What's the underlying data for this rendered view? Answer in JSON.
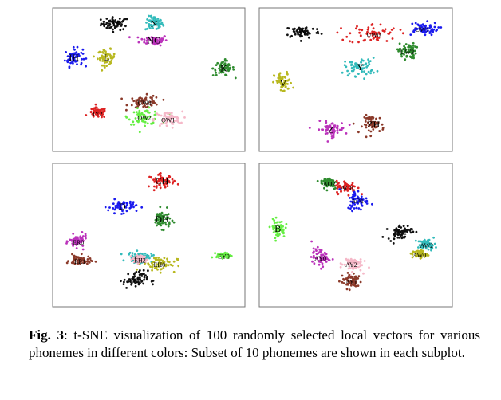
{
  "caption": {
    "label": "Fig. 3",
    "text": ": t-SNE visualization of 100 randomly selected local vectors for various phonemes in different colors: Subset of 10 phonemes are shown in each subplot."
  },
  "chart_data": [
    {
      "type": "scatter",
      "title": "",
      "xlabel": "",
      "ylabel": "",
      "grid": false,
      "legend": "none",
      "axes": false,
      "clusters": [
        {
          "label": "M",
          "color": "#111111",
          "cx": -0.38,
          "cy": 0.88,
          "sx": 0.08,
          "sy": 0.05
        },
        {
          "label": "N",
          "color": "#33bbbb",
          "cx": 0.06,
          "cy": 0.88,
          "sx": 0.05,
          "sy": 0.06
        },
        {
          "label": "NG",
          "color": "#bb33bb",
          "cx": 0.06,
          "cy": 0.62,
          "sx": 0.08,
          "sy": 0.04
        },
        {
          "label": "IH",
          "color": "#1a1aee",
          "cx": -0.85,
          "cy": 0.35,
          "sx": 0.05,
          "sy": 0.07
        },
        {
          "label": "L",
          "color": "#b8b820",
          "cx": -0.48,
          "cy": 0.35,
          "sx": 0.05,
          "sy": 0.06
        },
        {
          "label": "K",
          "color": "#2e8b2e",
          "cx": 0.85,
          "cy": 0.18,
          "sx": 0.06,
          "sy": 0.06
        },
        {
          "label": "IY2",
          "color": "#dd2222",
          "cx": -0.58,
          "cy": -0.52,
          "sx": 0.05,
          "sy": 0.04
        },
        {
          "label": "UW0",
          "color": "#8b3a2a",
          "cx": -0.05,
          "cy": -0.35,
          "sx": 0.09,
          "sy": 0.05
        },
        {
          "label": "OW2",
          "color": "#66ee44",
          "cx": -0.05,
          "cy": -0.58,
          "sx": 0.09,
          "sy": 0.06
        },
        {
          "label": "OW1",
          "color": "#f5b8c8",
          "cx": 0.22,
          "cy": -0.62,
          "sx": 0.08,
          "sy": 0.06
        }
      ]
    },
    {
      "type": "scatter",
      "title": "",
      "xlabel": "",
      "ylabel": "",
      "grid": false,
      "legend": "none",
      "axes": false,
      "clusters": [
        {
          "label": "W",
          "color": "#111111",
          "cx": -0.6,
          "cy": 0.75,
          "sx": 0.1,
          "sy": 0.05
        },
        {
          "label": "UW0",
          "color": "#dd2222",
          "cx": 0.2,
          "cy": 0.72,
          "sx": 0.14,
          "sy": 0.08
        },
        {
          "label": "UW1",
          "color": "#1a1aee",
          "cx": 0.75,
          "cy": 0.8,
          "sx": 0.09,
          "sy": 0.05
        },
        {
          "label": "UW2",
          "color": "#2e8b2e",
          "cx": 0.58,
          "cy": 0.45,
          "sx": 0.05,
          "sy": 0.06
        },
        {
          "label": "V",
          "color": "#b8b820",
          "cx": -0.82,
          "cy": -0.05,
          "sx": 0.05,
          "sy": 0.08
        },
        {
          "label": "Y",
          "color": "#33bbbb",
          "cx": 0.05,
          "cy": 0.2,
          "sx": 0.09,
          "sy": 0.07
        },
        {
          "label": "Z",
          "color": "#bb33bb",
          "cx": -0.28,
          "cy": -0.78,
          "sx": 0.08,
          "sy": 0.06
        },
        {
          "label": "ZH",
          "color": "#8b3a2a",
          "cx": 0.2,
          "cy": -0.7,
          "sx": 0.06,
          "sy": 0.07
        }
      ]
    },
    {
      "type": "scatter",
      "title": "",
      "xlabel": "",
      "ylabel": "",
      "grid": false,
      "legend": "none",
      "axes": false,
      "clusters": [
        {
          "label": "CH",
          "color": "#dd2222",
          "cx": 0.15,
          "cy": 0.85,
          "sx": 0.07,
          "sy": 0.05
        },
        {
          "label": "D",
          "color": "#1a1aee",
          "cx": -0.3,
          "cy": 0.45,
          "sx": 0.08,
          "sy": 0.05
        },
        {
          "label": "DH",
          "color": "#2e8b2e",
          "cx": 0.15,
          "cy": 0.25,
          "sx": 0.05,
          "sy": 0.07
        },
        {
          "label": "ER0",
          "color": "#bb33bb",
          "cx": -0.8,
          "cy": -0.1,
          "sx": 0.05,
          "sy": 0.05
        },
        {
          "label": "ER1",
          "color": "#8b3a2a",
          "cx": -0.78,
          "cy": -0.4,
          "sx": 0.06,
          "sy": 0.04
        },
        {
          "label": "ER2",
          "color": "#33bbbb",
          "cx": -0.1,
          "cy": -0.35,
          "sx": 0.07,
          "sy": 0.04
        },
        {
          "label": "EH0",
          "color": "#b8b820",
          "cx": 0.12,
          "cy": -0.45,
          "sx": 0.1,
          "sy": 0.06
        },
        {
          "label": "EH1",
          "color": "#111111",
          "cx": -0.15,
          "cy": -0.7,
          "sx": 0.07,
          "sy": 0.07
        },
        {
          "label": "EH2",
          "color": "#f5b8c8",
          "cx": -0.1,
          "cy": -0.38,
          "sx": 0.04,
          "sy": 0.03
        },
        {
          "label": "EY0",
          "color": "#66ee44",
          "cx": 0.85,
          "cy": -0.32,
          "sx": 0.04,
          "sy": 0.02
        }
      ]
    },
    {
      "type": "scatter",
      "title": "",
      "xlabel": "",
      "ylabel": "",
      "grid": false,
      "legend": "none",
      "axes": false,
      "clusters": [
        {
          "label": "AO2",
          "color": "#2e8b2e",
          "cx": -0.3,
          "cy": 0.82,
          "sx": 0.05,
          "sy": 0.05
        },
        {
          "label": "AO0",
          "color": "#dd2222",
          "cx": -0.1,
          "cy": 0.75,
          "sx": 0.06,
          "sy": 0.05
        },
        {
          "label": "AO1",
          "color": "#1a1aee",
          "cx": 0.02,
          "cy": 0.55,
          "sx": 0.06,
          "sy": 0.08
        },
        {
          "label": "B",
          "color": "#66ee44",
          "cx": -0.88,
          "cy": 0.1,
          "sx": 0.04,
          "sy": 0.07
        },
        {
          "label": "AW1",
          "color": "#111111",
          "cx": 0.5,
          "cy": 0.05,
          "sx": 0.07,
          "sy": 0.06
        },
        {
          "label": "AW2",
          "color": "#33bbbb",
          "cx": 0.8,
          "cy": -0.15,
          "sx": 0.05,
          "sy": 0.04
        },
        {
          "label": "AW0",
          "color": "#b8b820",
          "cx": 0.72,
          "cy": -0.3,
          "sx": 0.04,
          "sy": 0.03
        },
        {
          "label": "AY0",
          "color": "#bb33bb",
          "cx": -0.4,
          "cy": -0.35,
          "sx": 0.05,
          "sy": 0.07
        },
        {
          "label": "AY2",
          "color": "#f5b8c8",
          "cx": -0.05,
          "cy": -0.45,
          "sx": 0.06,
          "sy": 0.06
        },
        {
          "label": "AY1",
          "color": "#8b3a2a",
          "cx": -0.05,
          "cy": -0.72,
          "sx": 0.06,
          "sy": 0.06
        }
      ]
    }
  ]
}
